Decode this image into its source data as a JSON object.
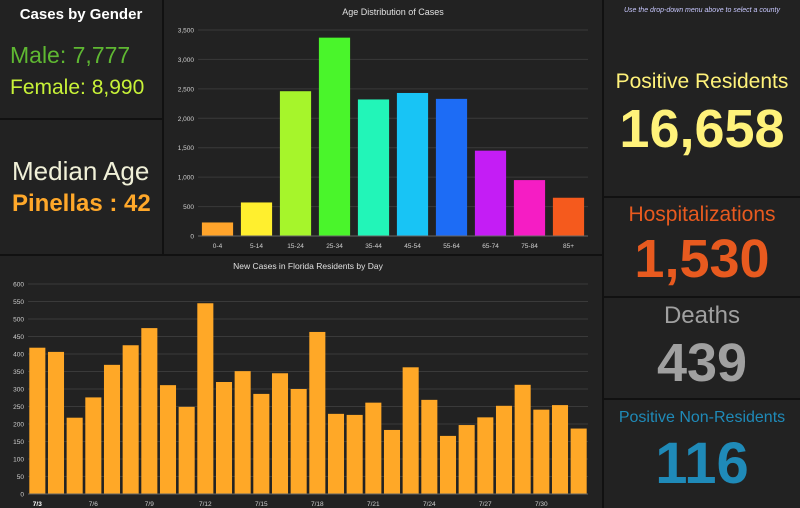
{
  "gender": {
    "title": "Cases by Gender",
    "male_label": "Male: 7,777",
    "female_label": "Female: 8,990",
    "male_color": "#5fb832",
    "female_color": "#c8f238"
  },
  "median": {
    "title": "Median Age",
    "value": "Pinellas : 42",
    "title_color": "#f0f0d8",
    "value_color": "#ffa82a"
  },
  "stats": {
    "note": "Use the drop-down menu above to select a county",
    "positive_residents_label": "Positive Residents",
    "positive_residents_value": "16,658",
    "hospitalizations_label": "Hospitalizations",
    "hospitalizations_value": "1,530",
    "deaths_label": "Deaths",
    "deaths_value": "439",
    "non_residents_label": "Positive Non-Residents",
    "non_residents_value": "116",
    "colors": {
      "positive": "#fff27a",
      "hospitalizations": "#e85a1f",
      "deaths": "#a0a0a0",
      "non_residents": "#1f8ab8"
    }
  },
  "chart_data": [
    {
      "type": "bar",
      "title": "Age Distribution of Cases",
      "categories": [
        "0-4",
        "5-14",
        "15-24",
        "25-34",
        "35-44",
        "45-54",
        "55-64",
        "65-74",
        "75-84",
        "85+"
      ],
      "values": [
        230,
        570,
        2460,
        3370,
        2320,
        2430,
        2330,
        1450,
        950,
        650
      ],
      "bar_colors": [
        "#ffa42b",
        "#ffef2e",
        "#a6f52b",
        "#4af52b",
        "#22f5b8",
        "#18c4f5",
        "#1d6cf5",
        "#c41df5",
        "#f51dc4",
        "#f55a1d"
      ],
      "ylim": [
        0,
        3500
      ],
      "yticks": [
        "0",
        "500",
        "1,000",
        "1,500",
        "2,000",
        "2,500",
        "3,000",
        "3,500"
      ],
      "grid": true,
      "xlabel": "",
      "ylabel": ""
    },
    {
      "type": "bar",
      "title": "New Cases in Florida Residents by Day",
      "categories": [
        "7/3",
        "7/4",
        "7/5",
        "7/6",
        "7/7",
        "7/8",
        "7/9",
        "7/10",
        "7/11",
        "7/12",
        "7/13",
        "7/14",
        "7/15",
        "7/16",
        "7/17",
        "7/18",
        "7/19",
        "7/20",
        "7/21",
        "7/22",
        "7/23",
        "7/24",
        "7/25",
        "7/26",
        "7/27",
        "7/28",
        "7/29",
        "7/30",
        "7/31",
        "8/1"
      ],
      "values": [
        418,
        406,
        218,
        276,
        369,
        425,
        474,
        311,
        249,
        545,
        320,
        351,
        286,
        345,
        300,
        463,
        229,
        226,
        261,
        183,
        362,
        269,
        166,
        197,
        219,
        252,
        312,
        241,
        254,
        187
      ],
      "xticks": [
        "7/3",
        "7/6",
        "7/9",
        "7/12",
        "7/15",
        "7/18",
        "7/21",
        "7/24",
        "7/27",
        "7/30"
      ],
      "bar_color": "#ffa827",
      "ylim": [
        0,
        600
      ],
      "yticks": [
        "0",
        "50",
        "100",
        "150",
        "200",
        "250",
        "300",
        "350",
        "400",
        "450",
        "500",
        "550",
        "600"
      ],
      "grid": true,
      "xlabel": "",
      "ylabel": ""
    }
  ]
}
